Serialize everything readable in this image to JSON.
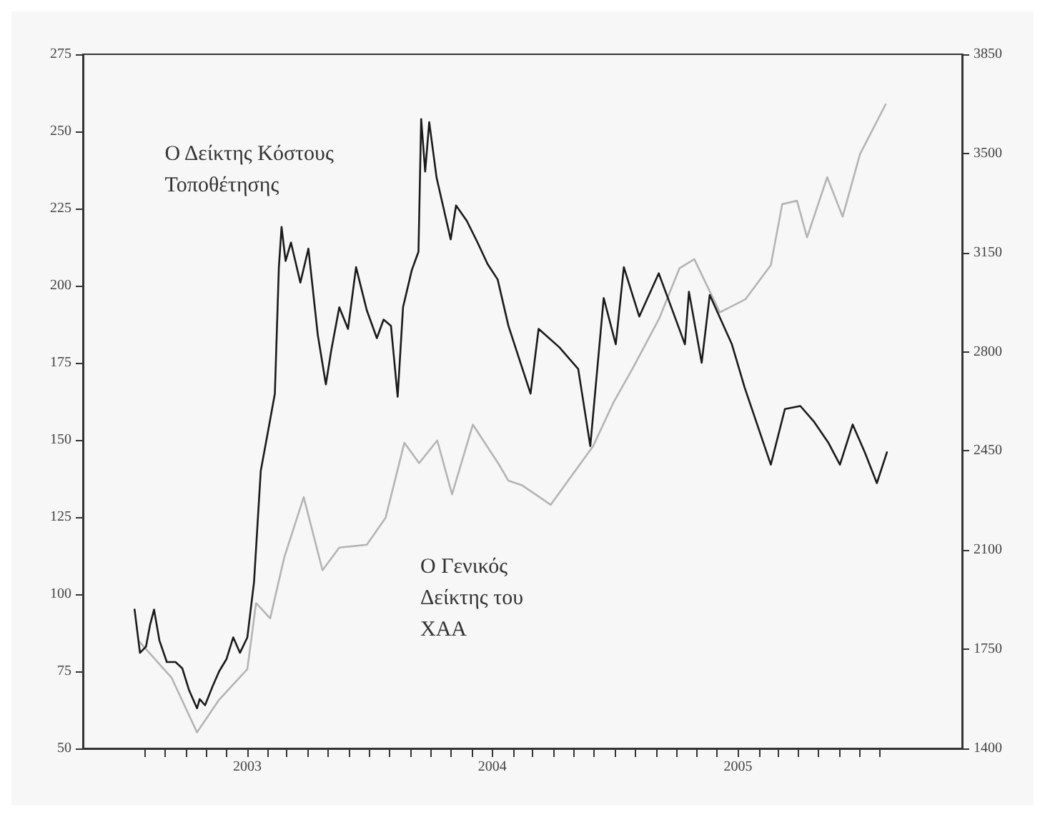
{
  "chart_data": {
    "type": "line",
    "legend": false,
    "grid": false,
    "marker": "none",
    "line_style": "solid",
    "xlim": [
      "2002-05",
      "2005-12"
    ],
    "xticks": [
      {
        "value": "2002-08",
        "label": null
      },
      {
        "value": "2002-09",
        "label": null
      },
      {
        "value": "2002-10",
        "label": null
      },
      {
        "value": "2002-11",
        "label": null
      },
      {
        "value": "2002-12",
        "label": null
      },
      {
        "value": "2003-01",
        "label": "2003"
      },
      {
        "value": "2003-02",
        "label": null
      },
      {
        "value": "2003-03",
        "label": null
      },
      {
        "value": "2003-04",
        "label": null
      },
      {
        "value": "2003-05",
        "label": null
      },
      {
        "value": "2003-06",
        "label": null
      },
      {
        "value": "2003-07",
        "label": null
      },
      {
        "value": "2003-08",
        "label": null
      },
      {
        "value": "2003-09",
        "label": null
      },
      {
        "value": "2003-10",
        "label": null
      },
      {
        "value": "2003-11",
        "label": null
      },
      {
        "value": "2003-12",
        "label": null
      },
      {
        "value": "2004-01",
        "label": "2004"
      },
      {
        "value": "2004-02",
        "label": null
      },
      {
        "value": "2004-03",
        "label": null
      },
      {
        "value": "2004-04",
        "label": null
      },
      {
        "value": "2004-05",
        "label": null
      },
      {
        "value": "2004-06",
        "label": null
      },
      {
        "value": "2004-07",
        "label": null
      },
      {
        "value": "2004-08",
        "label": null
      },
      {
        "value": "2004-09",
        "label": null
      },
      {
        "value": "2004-10",
        "label": null
      },
      {
        "value": "2004-11",
        "label": null
      },
      {
        "value": "2004-12",
        "label": null
      },
      {
        "value": "2005-01",
        "label": "2005"
      },
      {
        "value": "2005-02",
        "label": null
      },
      {
        "value": "2005-03",
        "label": null
      },
      {
        "value": "2005-04",
        "label": null
      },
      {
        "value": "2005-05",
        "label": null
      },
      {
        "value": "2005-06",
        "label": null
      },
      {
        "value": "2005-07",
        "label": null
      },
      {
        "value": "2005-08",
        "label": null
      }
    ],
    "ylim": [
      50,
      275
    ],
    "yticks": [
      50,
      75,
      100,
      125,
      150,
      175,
      200,
      225,
      250,
      275
    ],
    "y2lim": [
      1400,
      3850
    ],
    "y2ticks": [
      1400,
      1750,
      2100,
      2450,
      2800,
      3150,
      3500,
      3850
    ],
    "series": [
      {
        "name": "Ο Δείκτης Κόστους Τοποθέτησης",
        "color": "#1a1a1a",
        "x": [
          "2002-07-17",
          "2002-07-25",
          "2002-08-03",
          "2002-08-09",
          "2002-08-15",
          "2002-08-23",
          "2002-09-03",
          "2002-09-16",
          "2002-09-26",
          "2002-10-06",
          "2002-10-18",
          "2002-10-22",
          "2002-10-30",
          "2002-11-10",
          "2002-11-20",
          "2002-12-01",
          "2002-12-11",
          "2002-12-21",
          "2003-01-01",
          "2003-01-11",
          "2003-01-21",
          "2003-02-01",
          "2003-02-11",
          "2003-02-17",
          "2003-02-21",
          "2003-02-27",
          "2003-03-07",
          "2003-03-21",
          "2003-04-02",
          "2003-04-16",
          "2003-04-28",
          "2003-05-06",
          "2003-05-18",
          "2003-05-31",
          "2003-06-12",
          "2003-06-28",
          "2003-07-13",
          "2003-07-23",
          "2003-08-03",
          "2003-08-13",
          "2003-08-21",
          "2003-09-03",
          "2003-09-13",
          "2003-09-17",
          "2003-09-23",
          "2003-09-29",
          "2003-10-10",
          "2003-10-31",
          "2003-11-08",
          "2003-11-24",
          "2003-12-10",
          "2003-12-25",
          "2004-01-09",
          "2004-01-25",
          "2004-02-27",
          "2004-03-10",
          "2004-04-10",
          "2004-05-08",
          "2004-05-26",
          "2004-06-15",
          "2004-07-03",
          "2004-07-15",
          "2004-08-07",
          "2004-09-05",
          "2004-09-22",
          "2004-10-14",
          "2004-10-20",
          "2004-11-08",
          "2004-11-20",
          "2004-12-23",
          "2005-01-11",
          "2005-02-19",
          "2005-03-12",
          "2005-04-04",
          "2005-04-24",
          "2005-05-16",
          "2005-06-02",
          "2005-06-21",
          "2005-07-09",
          "2005-07-27",
          "2005-08-11"
        ],
        "values": [
          95,
          81,
          83,
          90,
          95,
          85,
          78,
          78,
          76,
          69,
          63,
          66,
          64,
          70,
          75,
          79,
          86,
          81,
          86,
          104,
          140,
          153,
          165,
          206,
          219,
          208,
          214,
          201,
          212,
          184,
          168,
          179,
          193,
          186,
          206,
          192,
          183,
          189,
          187,
          164,
          193,
          205,
          211,
          254,
          237,
          253,
          235,
          215,
          226,
          221,
          214,
          207,
          202,
          187,
          165,
          186,
          180,
          173,
          148,
          196,
          181,
          206,
          190,
          204,
          194,
          181,
          198,
          175,
          197,
          181,
          167,
          142,
          160,
          161,
          156,
          149,
          142,
          155,
          146,
          136,
          146
        ]
      },
      {
        "name": "Ο Γενικός Δείκτης του ΧΑΑ",
        "color": "#b4b4b4",
        "axis": "y2",
        "x": [
          "2002-07-24",
          "2002-09-10",
          "2002-10-18",
          "2002-11-19",
          "2003-01-01",
          "2003-01-14",
          "2003-02-04",
          "2003-02-25",
          "2003-03-26",
          "2003-04-23",
          "2003-05-18",
          "2003-06-28",
          "2003-07-26",
          "2003-08-23",
          "2003-09-14",
          "2003-10-11",
          "2003-11-02",
          "2003-12-03",
          "2004-01-11",
          "2004-01-25",
          "2004-02-15",
          "2004-03-28",
          "2004-05-30",
          "2004-06-30",
          "2004-07-29",
          "2004-09-06",
          "2004-10-06",
          "2004-10-28",
          "2004-12-05",
          "2005-01-12",
          "2005-02-19",
          "2005-03-08",
          "2005-03-30",
          "2005-04-14",
          "2005-05-14",
          "2005-06-06",
          "2005-07-02",
          "2005-08-09"
        ],
        "values": [
          1777,
          1650,
          1457,
          1569,
          1680,
          1913,
          1859,
          2074,
          2287,
          2029,
          2109,
          2119,
          2214,
          2479,
          2407,
          2487,
          2297,
          2543,
          2402,
          2345,
          2328,
          2260,
          2466,
          2623,
          2745,
          2919,
          3095,
          3127,
          2939,
          2985,
          3106,
          3321,
          3333,
          3204,
          3416,
          3277,
          3498,
          3673
        ]
      }
    ]
  }
}
